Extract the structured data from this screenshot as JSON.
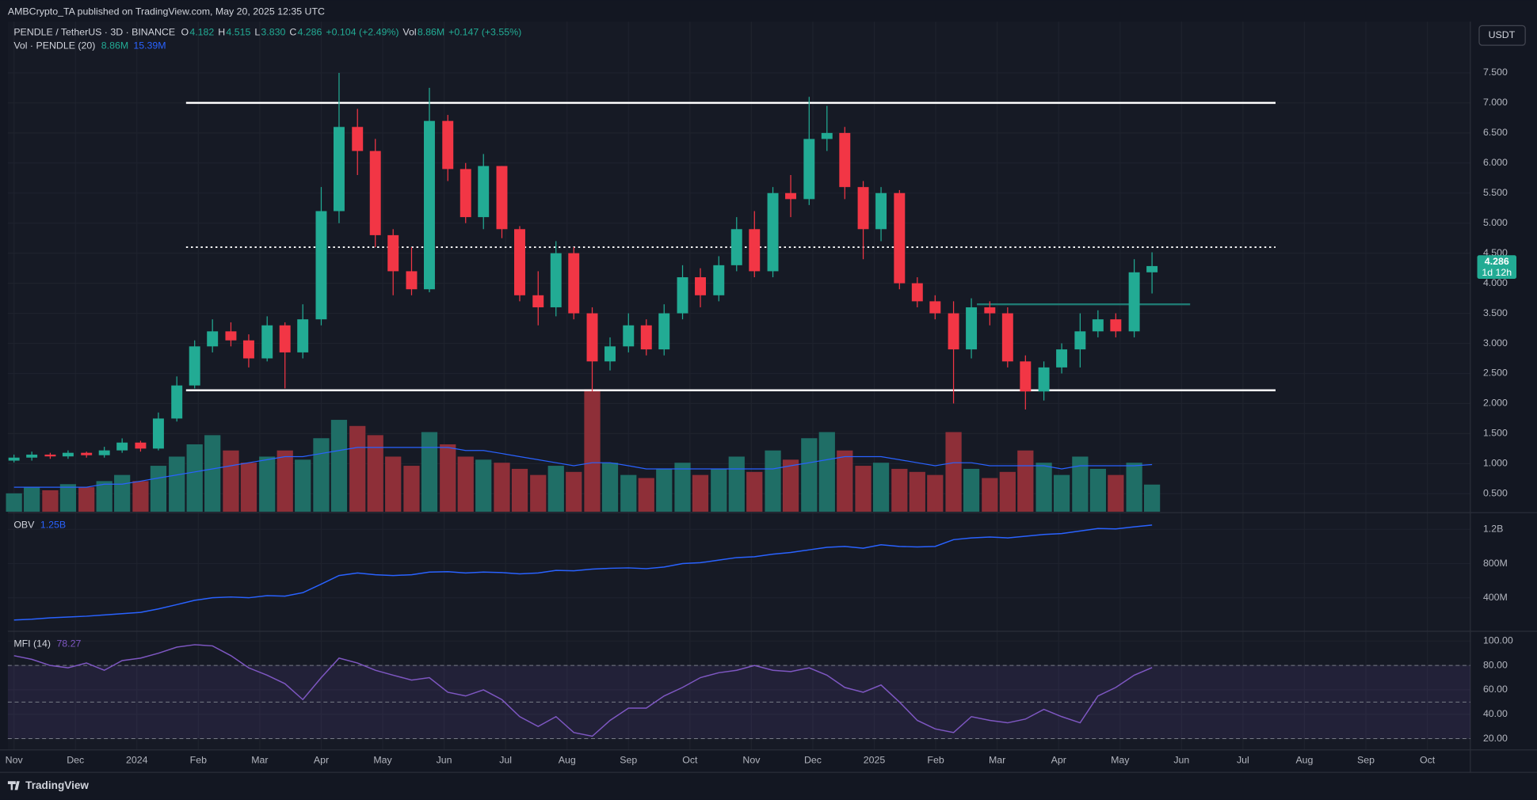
{
  "chart_data": {
    "type": "candlestick",
    "publisher": "AMBCrypto_TA published on TradingView.com, May 20, 2025 12:35 UTC",
    "symbol": "PENDLE / TetherUS · 3D · BINANCE",
    "ohlc_legend": [
      {
        "key": "O",
        "value": "4.182"
      },
      {
        "key": "H",
        "value": "4.515"
      },
      {
        "key": "L",
        "value": "3.830"
      },
      {
        "key": "C",
        "value": "4.286"
      }
    ],
    "change": "+0.104 (+2.49%)",
    "vol_legend": {
      "key": "Vol",
      "value": "8.86M",
      "change": "+0.147 (+3.55%)"
    },
    "volume_study": {
      "name": "Vol · PENDLE (20)",
      "values": [
        "8.86M",
        "15.39M"
      ]
    },
    "currency": "USDT",
    "last_price": {
      "label": "4.286",
      "countdown": "1d 12h"
    },
    "colors": {
      "up": "#22ab94",
      "down": "#f23645",
      "volume_up": "#1f6e66",
      "volume_down": "#8e2f38",
      "volume_ma": "#2962ff"
    },
    "xlim": [
      -0.1,
      23.7
    ],
    "xticks": [
      {
        "value": 0,
        "label": "Nov"
      },
      {
        "value": 1,
        "label": "Dec"
      },
      {
        "value": 2,
        "label": "2024"
      },
      {
        "value": 3,
        "label": "Feb"
      },
      {
        "value": 4,
        "label": "Mar"
      },
      {
        "value": 5,
        "label": "Apr"
      },
      {
        "value": 6,
        "label": "May"
      },
      {
        "value": 7,
        "label": "Jun"
      },
      {
        "value": 8,
        "label": "Jul"
      },
      {
        "value": 9,
        "label": "Aug"
      },
      {
        "value": 10,
        "label": "Sep"
      },
      {
        "value": 11,
        "label": "Oct"
      },
      {
        "value": 12,
        "label": "Nov"
      },
      {
        "value": 13,
        "label": "Dec"
      },
      {
        "value": 14,
        "label": "2025"
      },
      {
        "value": 15,
        "label": "Feb"
      },
      {
        "value": 16,
        "label": "Mar"
      },
      {
        "value": 17,
        "label": "Apr"
      },
      {
        "value": 18,
        "label": "May"
      },
      {
        "value": 19,
        "label": "Jun"
      },
      {
        "value": 20,
        "label": "Jul"
      },
      {
        "value": 21,
        "label": "Aug"
      },
      {
        "value": 22,
        "label": "Sep"
      },
      {
        "value": 23,
        "label": "Oct"
      }
    ],
    "ylim": [
      0.2,
      8.35
    ],
    "yticks": [
      {
        "value": 0.5,
        "label": "0.500"
      },
      {
        "value": 1,
        "label": "1.000"
      },
      {
        "value": 1.5,
        "label": "1.500"
      },
      {
        "value": 2,
        "label": "2.000"
      },
      {
        "value": 2.5,
        "label": "2.500"
      },
      {
        "value": 3,
        "label": "3.000"
      },
      {
        "value": 3.5,
        "label": "3.500"
      },
      {
        "value": 4,
        "label": "4.000"
      },
      {
        "value": 4.5,
        "label": "4.500"
      },
      {
        "value": 5,
        "label": "5.000"
      },
      {
        "value": 5.5,
        "label": "5.500"
      },
      {
        "value": 6,
        "label": "6.000"
      },
      {
        "value": 6.5,
        "label": "6.500"
      },
      {
        "value": 7,
        "label": "7.000"
      },
      {
        "value": 7.5,
        "label": "7.500"
      }
    ],
    "vlim": [
      0,
      160
    ],
    "x": [
      0.0,
      0.29,
      0.59,
      0.88,
      1.18,
      1.47,
      1.76,
      2.06,
      2.35,
      2.65,
      2.94,
      3.23,
      3.53,
      3.82,
      4.12,
      4.41,
      4.7,
      5.0,
      5.29,
      5.59,
      5.88,
      6.17,
      6.47,
      6.76,
      7.06,
      7.35,
      7.64,
      7.94,
      8.23,
      8.53,
      8.82,
      9.11,
      9.41,
      9.7,
      10.0,
      10.29,
      10.58,
      10.88,
      11.17,
      11.47,
      11.76,
      12.05,
      12.35,
      12.64,
      12.94,
      13.23,
      13.52,
      13.82,
      14.11,
      14.41,
      14.7,
      14.99,
      15.29,
      15.58,
      15.88,
      16.17,
      16.46,
      16.76,
      17.05,
      17.35,
      17.64,
      17.93,
      18.23,
      18.52
    ],
    "open": [
      1.05,
      1.1,
      1.15,
      1.12,
      1.18,
      1.14,
      1.22,
      1.35,
      1.25,
      1.75,
      2.3,
      2.95,
      3.2,
      3.05,
      2.75,
      3.3,
      2.85,
      3.4,
      5.2,
      6.6,
      6.2,
      4.8,
      4.2,
      3.9,
      6.7,
      5.9,
      5.1,
      5.95,
      4.9,
      3.8,
      3.6,
      4.5,
      3.5,
      2.7,
      2.95,
      3.3,
      2.9,
      3.5,
      4.1,
      3.8,
      4.3,
      4.9,
      4.2,
      5.5,
      5.4,
      6.4,
      6.5,
      5.6,
      4.9,
      5.5,
      4.0,
      3.7,
      3.5,
      2.9,
      3.6,
      3.5,
      2.7,
      2.2,
      2.6,
      2.9,
      3.2,
      3.4,
      3.2,
      4.182
    ],
    "high": [
      1.15,
      1.2,
      1.18,
      1.22,
      1.2,
      1.28,
      1.42,
      1.38,
      1.85,
      2.45,
      3.05,
      3.4,
      3.35,
      3.15,
      3.45,
      3.35,
      3.65,
      5.6,
      7.5,
      6.9,
      6.4,
      4.9,
      4.6,
      7.25,
      6.8,
      6.0,
      6.15,
      5.95,
      4.95,
      4.2,
      4.7,
      4.6,
      3.6,
      3.1,
      3.5,
      3.4,
      3.65,
      4.3,
      4.25,
      4.45,
      5.1,
      5.2,
      5.6,
      5.8,
      7.1,
      6.95,
      6.6,
      5.7,
      5.6,
      5.55,
      4.1,
      3.8,
      3.7,
      3.75,
      3.7,
      3.6,
      2.8,
      2.7,
      3.0,
      3.5,
      3.55,
      3.5,
      4.4,
      4.515
    ],
    "low": [
      1.02,
      1.05,
      1.08,
      1.08,
      1.1,
      1.1,
      1.18,
      1.2,
      1.22,
      1.7,
      2.25,
      2.85,
      2.95,
      2.6,
      2.7,
      2.25,
      2.75,
      3.3,
      5.0,
      5.8,
      4.6,
      3.8,
      3.8,
      3.85,
      5.7,
      5.0,
      4.9,
      4.75,
      3.7,
      3.3,
      3.45,
      3.4,
      2.2,
      2.55,
      2.85,
      2.8,
      2.8,
      3.4,
      3.6,
      3.7,
      4.2,
      4.1,
      4.1,
      5.1,
      5.3,
      6.2,
      5.4,
      4.4,
      4.7,
      3.9,
      3.6,
      3.4,
      2.0,
      2.75,
      3.3,
      2.6,
      1.9,
      2.05,
      2.5,
      2.6,
      3.1,
      3.1,
      3.1,
      3.83
    ],
    "close": [
      1.1,
      1.15,
      1.12,
      1.18,
      1.14,
      1.22,
      1.35,
      1.25,
      1.75,
      2.3,
      2.95,
      3.2,
      3.05,
      2.75,
      3.3,
      2.85,
      3.4,
      5.2,
      6.6,
      6.2,
      4.8,
      4.2,
      3.9,
      6.7,
      5.9,
      5.1,
      5.95,
      4.9,
      3.8,
      3.6,
      4.5,
      3.5,
      2.7,
      2.95,
      3.3,
      2.9,
      3.5,
      4.1,
      3.8,
      4.3,
      4.9,
      4.2,
      5.5,
      5.4,
      6.4,
      6.5,
      5.6,
      4.9,
      5.5,
      4.0,
      3.7,
      3.5,
      2.9,
      3.6,
      3.5,
      2.7,
      2.2,
      2.6,
      2.9,
      3.2,
      3.4,
      3.2,
      4.182,
      4.286
    ],
    "volume": [
      6,
      8,
      7,
      9,
      8,
      10,
      12,
      10,
      15,
      18,
      22,
      25,
      20,
      16,
      18,
      20,
      17,
      24,
      30,
      28,
      25,
      18,
      15,
      26,
      22,
      18,
      17,
      16,
      14,
      12,
      15,
      13,
      40,
      16,
      12,
      11,
      14,
      16,
      12,
      14,
      18,
      13,
      20,
      17,
      24,
      26,
      20,
      15,
      16,
      14,
      13,
      12,
      26,
      14,
      11,
      13,
      20,
      16,
      12,
      18,
      14,
      12,
      16,
      8.86
    ],
    "volume_ma": [
      8,
      8,
      8,
      8,
      8,
      9,
      9,
      10,
      11,
      12,
      13,
      14,
      15,
      16,
      17,
      18,
      18,
      19,
      20,
      21,
      21,
      21,
      21,
      21,
      21,
      20,
      20,
      19,
      18,
      17,
      16,
      15,
      16,
      16,
      15,
      14,
      14,
      14,
      14,
      14,
      14,
      14,
      14,
      15,
      16,
      17,
      18,
      18,
      18,
      17,
      16,
      15,
      16,
      16,
      15,
      15,
      15,
      15,
      14,
      15,
      15,
      15,
      15,
      15.39
    ],
    "levels": [
      {
        "value": 7.0,
        "from": 2.8,
        "to": 20.53,
        "style": "solid",
        "color": "#ffffff"
      },
      {
        "value": 2.22,
        "from": 2.8,
        "to": 20.53,
        "style": "solid",
        "color": "#ffffff"
      },
      {
        "value": 4.6,
        "from": 2.8,
        "to": 20.53,
        "style": "dotted",
        "color": "#ffffff"
      },
      {
        "value": 3.65,
        "from": 15.67,
        "to": 19.14,
        "style": "solid",
        "color": "#1f7a73"
      }
    ],
    "obv": {
      "name": "OBV",
      "value_label": "1.25B",
      "color": "#2962ff",
      "ylim": [
        20,
        1383
      ],
      "yticks": [
        {
          "value": 400,
          "label": "400M"
        },
        {
          "value": 800,
          "label": "800M"
        },
        {
          "value": 1200,
          "label": "1.2B"
        }
      ],
      "values": [
        140,
        150,
        165,
        175,
        185,
        200,
        215,
        230,
        270,
        320,
        370,
        400,
        410,
        400,
        425,
        420,
        460,
        560,
        660,
        690,
        670,
        660,
        670,
        700,
        705,
        690,
        700,
        695,
        680,
        690,
        720,
        715,
        735,
        745,
        750,
        740,
        760,
        800,
        810,
        840,
        870,
        880,
        910,
        930,
        960,
        990,
        1000,
        980,
        1020,
        1000,
        995,
        1000,
        1080,
        1100,
        1110,
        1100,
        1120,
        1140,
        1150,
        1180,
        1210,
        1205,
        1230,
        1250
      ]
    },
    "mfi": {
      "name": "MFI (14)",
      "value_label": "78.27",
      "color": "#7e57c2",
      "ylim": [
        10.8,
        107.2
      ],
      "yticks": [
        {
          "value": 20,
          "label": "20.00"
        },
        {
          "value": 40,
          "label": "40.00"
        },
        {
          "value": 60,
          "label": "60.00"
        },
        {
          "value": 80,
          "label": "80.00"
        },
        {
          "value": 100,
          "label": "100.00"
        }
      ],
      "band_lines": [
        80,
        50,
        20
      ],
      "values": [
        88,
        85,
        80,
        78,
        82,
        76,
        84,
        86,
        90,
        95,
        97,
        96,
        88,
        78,
        72,
        65,
        52,
        70,
        86,
        82,
        76,
        72,
        68,
        70,
        58,
        55,
        60,
        52,
        38,
        30,
        38,
        25,
        22,
        35,
        45,
        45,
        55,
        62,
        70,
        74,
        76,
        80,
        76,
        75,
        78,
        72,
        62,
        58,
        64,
        50,
        35,
        28,
        25,
        38,
        35,
        33,
        36,
        44,
        38,
        33,
        55,
        62,
        72,
        78.27
      ]
    },
    "footer": "TradingView"
  }
}
